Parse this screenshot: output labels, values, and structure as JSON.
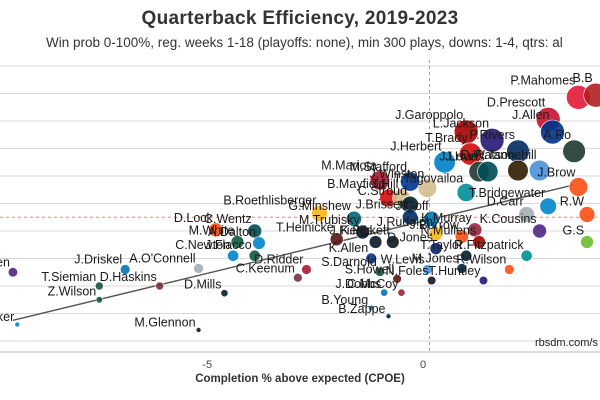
{
  "chart_data": {
    "type": "scatter",
    "title": "Quarterback Efficiency, 2019-2023",
    "subtitle": "Win prob 0-100%, reg. weeks 1-18 (playoffs: none), min 300 plays, downs: 1-4, qtrs: al",
    "xlabel": "Completion % above expected (CPOE)",
    "ylabel": "",
    "x_ticks": [
      "-5",
      "0"
    ],
    "credit": "rbsdm.com/s",
    "grid": true,
    "xlim": [
      -9.8,
      4.1
    ],
    "ylim": [
      -0.17,
      0.37
    ],
    "points": [
      {
        "label": "P.Mahomes",
        "x": 3.6,
        "y": 0.293,
        "color": "#e31837"
      },
      {
        "label": "B.B",
        "x": 4.0,
        "y": 0.297,
        "color": "#b02020"
      },
      {
        "label": "D.Prescott",
        "x": 2.9,
        "y": 0.253,
        "color": "#c8102e"
      },
      {
        "label": "J.Allen",
        "x": 3.0,
        "y": 0.23,
        "color": "#00338d"
      },
      {
        "label": "J.Garoppolo",
        "x": 1.0,
        "y": 0.23,
        "color": "#aa0000"
      },
      {
        "label": "L.Jackson",
        "x": 1.6,
        "y": 0.215,
        "color": "#241773"
      },
      {
        "label": "A.Ro",
        "x": 3.5,
        "y": 0.195,
        "color": "#203731"
      },
      {
        "label": "T.Brady",
        "x": 1.1,
        "y": 0.19,
        "color": "#d50a0a"
      },
      {
        "label": "P.Rivers",
        "x": 2.2,
        "y": 0.195,
        "color": "#002c5f"
      },
      {
        "label": "J.Herbert",
        "x": 0.5,
        "y": 0.175,
        "color": "#0080c6"
      },
      {
        "label": "J.Love",
        "x": 1.3,
        "y": 0.158,
        "color": "#203731"
      },
      {
        "label": "J.Hurts",
        "x": 1.5,
        "y": 0.158,
        "color": "#004c54"
      },
      {
        "label": "D.Watson",
        "x": 2.2,
        "y": 0.16,
        "color": "#311d00"
      },
      {
        "label": "R.Tannehill",
        "x": 2.7,
        "y": 0.16,
        "color": "#4b92db"
      },
      {
        "label": "M.Mariota",
        "x": -1.0,
        "y": 0.142,
        "color": "#a71930"
      },
      {
        "label": "M.Stafford",
        "x": -0.3,
        "y": 0.14,
        "color": "#003594"
      },
      {
        "label": "J.Winston",
        "x": 0.1,
        "y": 0.128,
        "color": "#d3bc8d"
      },
      {
        "label": "T.Tagovailoa",
        "x": 1.0,
        "y": 0.12,
        "color": "#008e97"
      },
      {
        "label": "J.Brow",
        "x": 3.6,
        "y": 0.13,
        "color": "#fb4f14"
      },
      {
        "label": "B.Mayfield",
        "x": -0.8,
        "y": 0.11,
        "color": "#d50a0a"
      },
      {
        "label": "T.Hill",
        "x": -0.5,
        "y": 0.11,
        "color": "#d3bc8d"
      },
      {
        "label": "C.Stroud",
        "x": -0.3,
        "y": 0.098,
        "color": "#03202f"
      },
      {
        "label": "T.Bridgewater",
        "x": 2.9,
        "y": 0.095,
        "color": "#0085ca"
      },
      {
        "label": "D.Carr",
        "x": 2.4,
        "y": 0.08,
        "color": "#a5acaf"
      },
      {
        "label": "R.W",
        "x": 3.8,
        "y": 0.08,
        "color": "#fb4f14"
      },
      {
        "label": "B.Roethlisberger",
        "x": -2.4,
        "y": 0.082,
        "color": "#ffb612"
      },
      {
        "label": "G.Minshew",
        "x": -1.6,
        "y": 0.072,
        "color": "#006778"
      },
      {
        "label": "J.Brissett",
        "x": -0.3,
        "y": 0.075,
        "color": "#002c5f"
      },
      {
        "label": "J.Goff",
        "x": 0.2,
        "y": 0.072,
        "color": "#0076b6"
      },
      {
        "label": "K.Murray",
        "x": 1.2,
        "y": 0.052,
        "color": "#97233f"
      },
      {
        "label": "K.Cousins",
        "x": 2.7,
        "y": 0.05,
        "color": "#4f2683"
      },
      {
        "label": "D.Lock",
        "x": -4.8,
        "y": 0.052,
        "color": "#fb4f14"
      },
      {
        "label": "C.Wentz",
        "x": -3.9,
        "y": 0.05,
        "color": "#004c54"
      },
      {
        "label": "M.Trubisky",
        "x": -1.4,
        "y": 0.048,
        "color": "#0b162a"
      },
      {
        "label": "J.Rudolph",
        "x": 0.3,
        "y": 0.045,
        "color": "#ffb612"
      },
      {
        "label": "T.Heinicke",
        "x": -2.0,
        "y": 0.035,
        "color": "#5a1414"
      },
      {
        "label": "J.Burrow",
        "x": 0.9,
        "y": 0.04,
        "color": "#fb4f14"
      },
      {
        "label": "N.Mullens",
        "x": 1.3,
        "y": 0.03,
        "color": "#aa0000"
      },
      {
        "label": "G.S",
        "x": 3.8,
        "y": 0.03,
        "color": "#69be28"
      },
      {
        "label": "M.White",
        "x": -4.3,
        "y": 0.03,
        "color": "#125740"
      },
      {
        "label": "A.Dalton",
        "x": -3.8,
        "y": 0.028,
        "color": "#0085ca"
      },
      {
        "label": "J.Fields",
        "x": -1.1,
        "y": 0.03,
        "color": "#0b162a"
      },
      {
        "label": "K.Pickett",
        "x": -0.7,
        "y": 0.03,
        "color": "#101820"
      },
      {
        "label": "D.Jones",
        "x": 0.3,
        "y": 0.018,
        "color": "#0b2265"
      },
      {
        "label": "C.Newton",
        "x": -4.4,
        "y": 0.005,
        "color": "#0085ca"
      },
      {
        "label": "J.Flacco",
        "x": -3.9,
        "y": 0.005,
        "color": "#125740"
      },
      {
        "label": "K.Allen",
        "x": -1.2,
        "y": 0.0,
        "color": "#00338d"
      },
      {
        "label": "T.Taylor",
        "x": 1.0,
        "y": 0.005,
        "color": "#03202f"
      },
      {
        "label": "R.Fitzpatrick",
        "x": 2.4,
        "y": 0.005,
        "color": "#008e97"
      },
      {
        "label": "J.Driskel",
        "x": -6.9,
        "y": -0.02,
        "color": "#0076b6"
      },
      {
        "label": "A.O'Connell",
        "x": -5.2,
        "y": -0.018,
        "color": "#a5acaf"
      },
      {
        "label": "D.Ridder",
        "x": -2.7,
        "y": -0.02,
        "color": "#a71930"
      },
      {
        "label": "S.Darnold",
        "x": -1.0,
        "y": -0.024,
        "color": "#125740"
      },
      {
        "label": "W.Levis",
        "x": 0.1,
        "y": -0.02,
        "color": "#4b92db"
      },
      {
        "label": "M.Jones",
        "x": 0.9,
        "y": -0.018,
        "color": "#002244"
      },
      {
        "label": "R.Wilson",
        "x": 2.0,
        "y": -0.02,
        "color": "#fb4f14"
      },
      {
        "label": "B.Allen",
        "x": -9.5,
        "y": -0.025,
        "color": "#4f2683"
      },
      {
        "label": "C.Keenum",
        "x": -2.9,
        "y": -0.035,
        "color": "#773141"
      },
      {
        "label": "S.Howell",
        "x": -0.6,
        "y": -0.037,
        "color": "#5a1414"
      },
      {
        "label": "N.Foles",
        "x": 0.2,
        "y": -0.04,
        "color": "#0b162a"
      },
      {
        "label": "T.Huntley",
        "x": 1.4,
        "y": -0.04,
        "color": "#241773"
      },
      {
        "label": "T.Siemian",
        "x": -7.5,
        "y": -0.05,
        "color": "#125740"
      },
      {
        "label": "D.Haskins",
        "x": -6.1,
        "y": -0.05,
        "color": "#773141"
      },
      {
        "label": "D.Mills",
        "x": -4.6,
        "y": -0.063,
        "color": "#03202f"
      },
      {
        "label": "J.Dobbs",
        "x": -0.9,
        "y": -0.062,
        "color": "#0076b6"
      },
      {
        "label": "C.McCoy",
        "x": -0.5,
        "y": -0.062,
        "color": "#97233f"
      },
      {
        "label": "Z.Wilson",
        "x": -7.5,
        "y": -0.075,
        "color": "#125740"
      },
      {
        "label": "B.Young",
        "x": -1.2,
        "y": -0.09,
        "color": "#0085ca"
      },
      {
        "label": "B.Zappe",
        "x": -0.8,
        "y": -0.105,
        "color": "#002244"
      },
      {
        "label": "M.Glennon",
        "x": -5.2,
        "y": -0.13,
        "color": "#0b162a"
      },
      {
        "label": "P.Walker",
        "x": -9.4,
        "y": -0.12,
        "color": "#0085ca"
      }
    ]
  }
}
